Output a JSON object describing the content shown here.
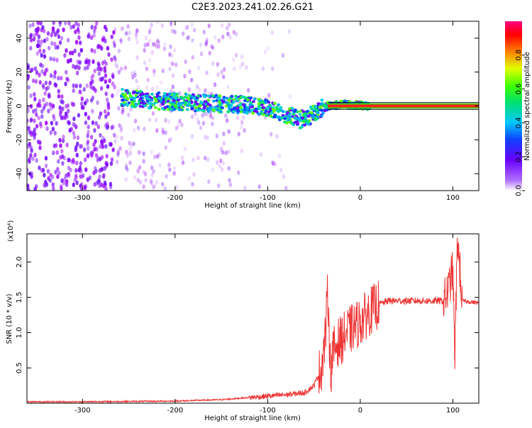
{
  "title": "C2E3.2023.241.02.26.G21",
  "colors": {
    "snr_line": "#ee3333",
    "axis": "#000000",
    "background": "#ffffff"
  },
  "chart_data": [
    {
      "type": "heatmap",
      "xlabel": "Height of straight line (km)",
      "ylabel": "Frequency (Hz)",
      "xlim": [
        -360,
        128
      ],
      "ylim": [
        -50,
        50
      ],
      "xticks": [
        -300,
        -200,
        -100,
        0,
        100
      ],
      "yticks": [
        -40,
        -20,
        0,
        20,
        40
      ],
      "colorbar": {
        "label": "Normalized spectral amplitude",
        "range": [
          0,
          1
        ],
        "ticks": [
          0.0,
          0.2,
          0.4,
          0.6,
          0.8
        ],
        "tick_labels": [
          "0.0",
          "0.2",
          "0.4",
          "0.6",
          "0.8"
        ],
        "colormap": "rainbow (white-violet-blue-cyan-green-yellow-red-magenta)"
      },
      "trace": {
        "description": "dominant frequency ridge",
        "points": [
          [
            -258,
            5
          ],
          [
            -220,
            3
          ],
          [
            -180,
            2
          ],
          [
            -140,
            1
          ],
          [
            -110,
            0
          ],
          [
            -80,
            -5
          ],
          [
            -65,
            -8
          ],
          [
            -55,
            -6
          ],
          [
            -45,
            -2
          ],
          [
            -35,
            0
          ],
          [
            -20,
            1
          ],
          [
            0,
            0.5
          ],
          [
            10,
            0
          ],
          [
            128,
            0
          ]
        ]
      },
      "grid": false
    },
    {
      "type": "line",
      "xlabel": "Height of straight line (km)",
      "ylabel": "SNR (10 * v/v)",
      "y_multiplier": "(x10⁴)",
      "xlim": [
        -360,
        128
      ],
      "ylim": [
        0,
        2.4
      ],
      "xticks": [
        -300,
        -200,
        -100,
        0,
        100
      ],
      "yticks": [
        0.5,
        1.0,
        1.5,
        2.0
      ],
      "ytick_labels": [
        "0.5",
        "1.0",
        "1.5",
        "2.0"
      ],
      "series": [
        {
          "x": [
            -360,
            -300,
            -200,
            -150,
            -120,
            -100,
            -80,
            -60,
            -50,
            -42,
            -38,
            -35,
            -32,
            -30,
            -25,
            -20,
            -15,
            -10,
            -5,
            0,
            10,
            20,
            30,
            40,
            60,
            80,
            90,
            95,
            100,
            102,
            105,
            110,
            128
          ],
          "y": [
            0.02,
            0.02,
            0.03,
            0.05,
            0.08,
            0.1,
            0.12,
            0.15,
            0.25,
            0.5,
            0.9,
            1.6,
            0.4,
            0.7,
            0.85,
            0.9,
            1.0,
            1.05,
            1.1,
            1.15,
            1.3,
            1.4,
            1.45,
            1.45,
            1.45,
            1.45,
            1.45,
            1.6,
            1.9,
            0.6,
            2.35,
            1.45,
            1.42
          ]
        }
      ],
      "grid": false
    }
  ]
}
